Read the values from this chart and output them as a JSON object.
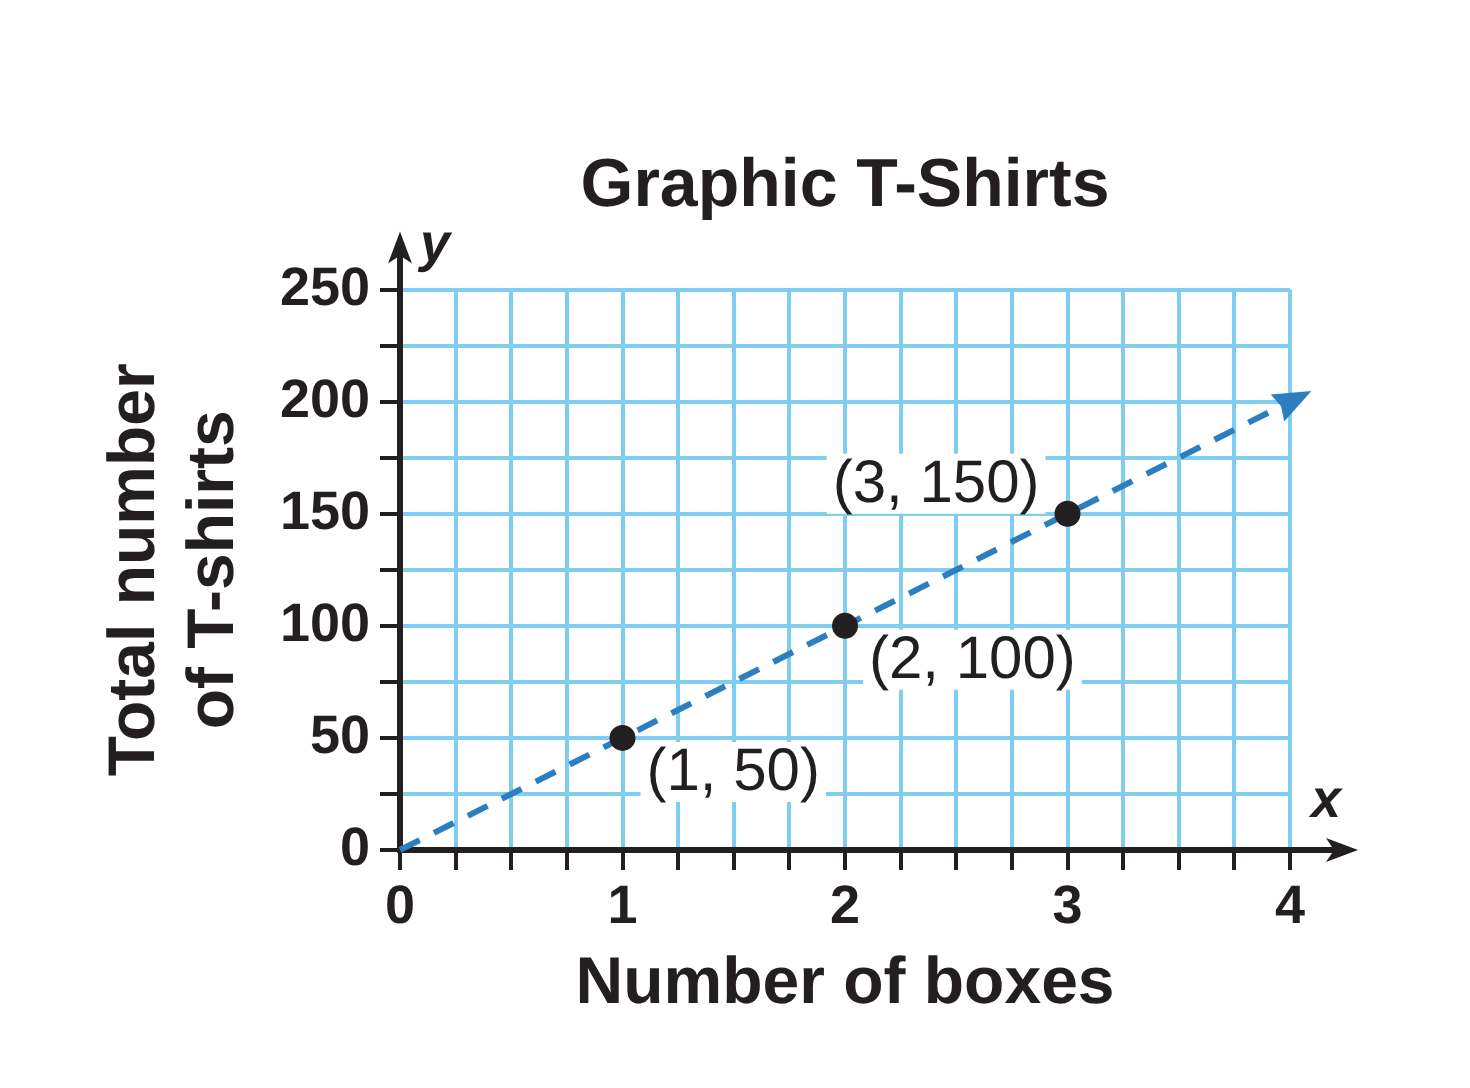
{
  "chart_data": {
    "type": "line",
    "title": "Graphic T-Shirts",
    "xlabel": "Number of boxes",
    "ylabel": "Total number of T-shirts",
    "annotations": [
      "y",
      "x"
    ],
    "xlim": [
      0,
      4
    ],
    "ylim": [
      0,
      250
    ],
    "xticks": [
      0,
      {
        "value": 0.25,
        "label": null
      },
      {
        "value": 0.5,
        "label": null
      },
      {
        "value": 0.75,
        "label": null
      },
      1,
      {
        "value": 1.25,
        "label": null
      },
      {
        "value": 1.5,
        "label": null
      },
      {
        "value": 1.75,
        "label": null
      },
      2,
      {
        "value": 2.25,
        "label": null
      },
      {
        "value": 2.5,
        "label": null
      },
      {
        "value": 2.75,
        "label": null
      },
      3,
      {
        "value": 3.25,
        "label": null
      },
      {
        "value": 3.5,
        "label": null
      },
      {
        "value": 3.75,
        "label": null
      },
      4
    ],
    "yticks": [
      0,
      {
        "value": 25,
        "label": null
      },
      50,
      {
        "value": 75,
        "label": null
      },
      100,
      {
        "value": 125,
        "label": null
      },
      150,
      {
        "value": 175,
        "label": null
      },
      200,
      {
        "value": 225,
        "label": null
      },
      250
    ],
    "grid": true,
    "series": [
      {
        "type": "line",
        "x": [
          0,
          4
        ],
        "values": [
          0,
          200
        ],
        "color": "#2b7fc1",
        "line_style": "dashed"
      },
      {
        "type": "scatter",
        "x": [
          1,
          2,
          3
        ],
        "values": [
          50,
          100,
          150
        ],
        "color": "#231f20",
        "marker": "circle",
        "value_labels": [
          "(1, 50)",
          "(2, 100)",
          "(3, 150)"
        ]
      }
    ]
  }
}
